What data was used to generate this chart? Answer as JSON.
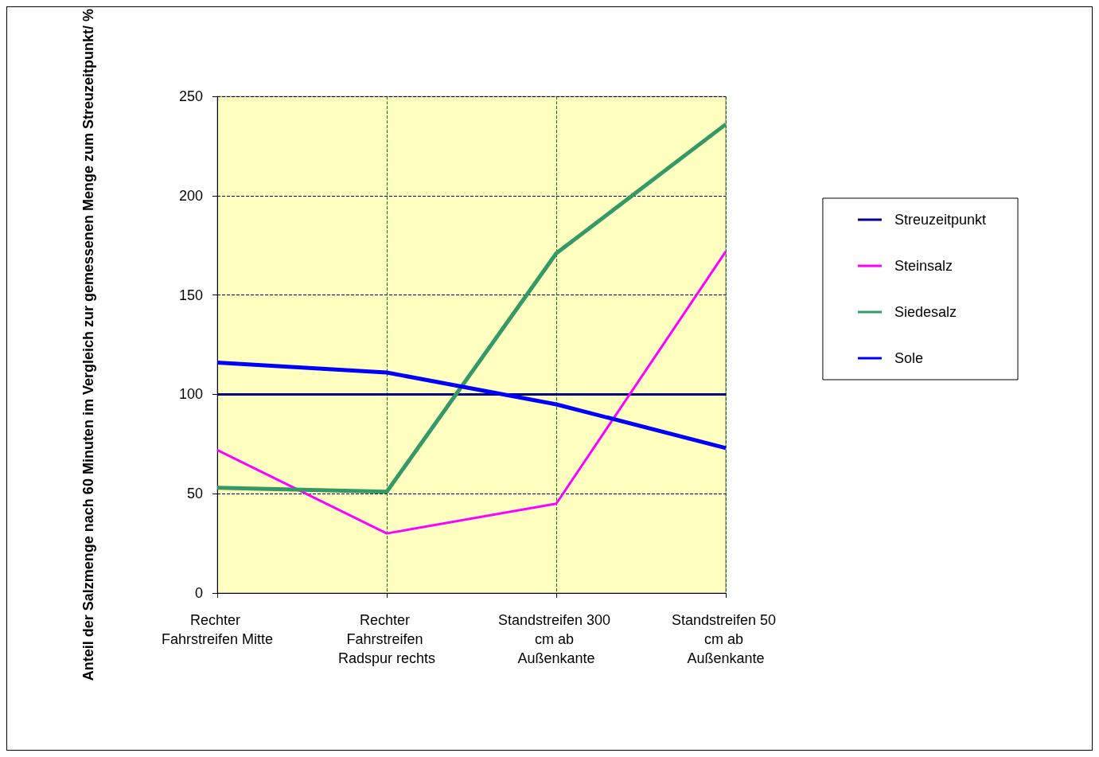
{
  "chart_data": {
    "type": "line",
    "ylabel": "Anteil der Salzmenge nach 60 Minuten im Vergleich zur gemessenen Menge zum Streuzeitpunkt/ %",
    "categories": [
      "Rechter Fahrstreifen Mitte",
      "Rechter Fahrstreifen Radspur rechts",
      "Standstreifen 300 cm ab Außenkante",
      "Standstreifen 50 cm ab Außenkante"
    ],
    "series": [
      {
        "name": "Streuzeitpunkt",
        "color": "#000080",
        "values": [
          100,
          100,
          100,
          100
        ]
      },
      {
        "name": "Steinsalz",
        "color": "#ff00ff",
        "values": [
          72,
          30,
          45,
          172
        ]
      },
      {
        "name": "Siedesalz",
        "color": "#339966",
        "values": [
          53,
          51,
          171,
          236
        ]
      },
      {
        "name": "Sole",
        "color": "#0000ff",
        "values": [
          116,
          111,
          95,
          73
        ]
      }
    ],
    "ylim": [
      0,
      250
    ],
    "yticks": [
      0,
      50,
      100,
      150,
      200,
      250
    ],
    "grid": true,
    "legend": "right",
    "marker": "none",
    "line_style": "solid"
  }
}
